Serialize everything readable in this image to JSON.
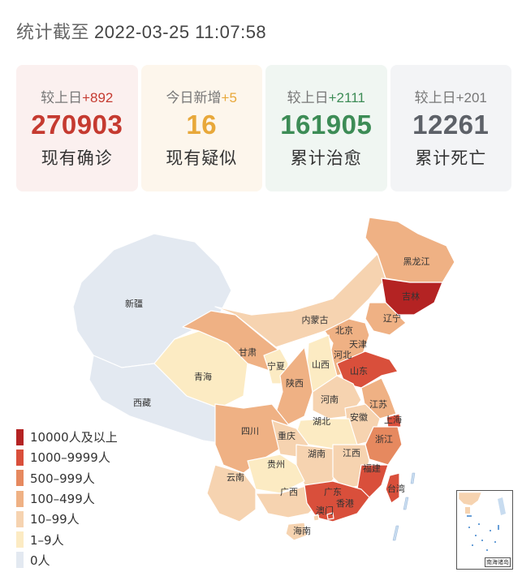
{
  "header": {
    "prefix": "统计截至",
    "timestamp": "2022-03-25 11:07:58"
  },
  "cards": [
    {
      "delta_label": "较上日",
      "delta_value": "+892",
      "number": "270903",
      "label": "现有确诊",
      "color": "#c53a30",
      "delta_color": "#c53a30",
      "bg": "#fbf0ef"
    },
    {
      "delta_label": "今日新增",
      "delta_value": "+5",
      "number": "16",
      "label": "现有疑似",
      "color": "#e8a83a",
      "delta_color": "#e8a83a",
      "bg": "#fdf6ec"
    },
    {
      "delta_label": "较上日",
      "delta_value": "+2111",
      "number": "161905",
      "label": "累计治愈",
      "color": "#3d8c56",
      "delta_color": "#3d8c56",
      "bg": "#f0f6f2"
    },
    {
      "delta_label": "较上日",
      "delta_value": "+201",
      "number": "12261",
      "label": "累计死亡",
      "color": "#5d6168",
      "delta_color": "#777777",
      "bg": "#f3f4f6"
    }
  ],
  "legend": [
    {
      "label": "10000人及以上",
      "color": "#b42323"
    },
    {
      "label": "1000–9999人",
      "color": "#d94f3b"
    },
    {
      "label": "500–999人",
      "color": "#e6895f"
    },
    {
      "label": "100–499人",
      "color": "#efb184"
    },
    {
      "label": "10–99人",
      "color": "#f6d3b0"
    },
    {
      "label": "1–9人",
      "color": "#fcebc3"
    },
    {
      "label": "0人",
      "color": "#e3e9f1"
    }
  ],
  "provinces": [
    {
      "name": "新疆",
      "color": "#e3e9f1"
    },
    {
      "name": "西藏",
      "color": "#e3e9f1"
    },
    {
      "name": "青海",
      "color": "#fcebc3"
    },
    {
      "name": "甘肃",
      "color": "#efb184"
    },
    {
      "name": "内蒙古",
      "color": "#f6d3b0"
    },
    {
      "name": "黑龙江",
      "color": "#efb184"
    },
    {
      "name": "吉林",
      "color": "#b42323"
    },
    {
      "name": "辽宁",
      "color": "#efb184"
    },
    {
      "name": "北京",
      "color": "#efb184"
    },
    {
      "name": "天津",
      "color": "#efb184"
    },
    {
      "name": "河北",
      "color": "#efb184"
    },
    {
      "name": "山西",
      "color": "#fcebc3"
    },
    {
      "name": "宁夏",
      "color": "#fcebc3"
    },
    {
      "name": "陕西",
      "color": "#efb184"
    },
    {
      "name": "山东",
      "color": "#d94f3b"
    },
    {
      "name": "河南",
      "color": "#f6d3b0"
    },
    {
      "name": "江苏",
      "color": "#efb184"
    },
    {
      "name": "安徽",
      "color": "#f6d3b0"
    },
    {
      "name": "上海",
      "color": "#d94f3b"
    },
    {
      "name": "湖北",
      "color": "#fcebc3"
    },
    {
      "name": "四川",
      "color": "#efb184"
    },
    {
      "name": "重庆",
      "color": "#f6d3b0"
    },
    {
      "name": "浙江",
      "color": "#e6895f"
    },
    {
      "name": "湖南",
      "color": "#f6d3b0"
    },
    {
      "name": "江西",
      "color": "#f6d3b0"
    },
    {
      "name": "贵州",
      "color": "#fcebc3"
    },
    {
      "name": "云南",
      "color": "#f6d3b0"
    },
    {
      "name": "福建",
      "color": "#d94f3b"
    },
    {
      "name": "广西",
      "color": "#f6d3b0"
    },
    {
      "name": "广东",
      "color": "#d94f3b"
    },
    {
      "name": "台湾",
      "color": "#d94f3b"
    },
    {
      "name": "澳门",
      "color": "#f6d3b0"
    },
    {
      "name": "香港",
      "color": "#d94f3b"
    },
    {
      "name": "海南",
      "color": "#f6d3b0"
    }
  ],
  "inset": {
    "caption": "南海诸岛"
  }
}
